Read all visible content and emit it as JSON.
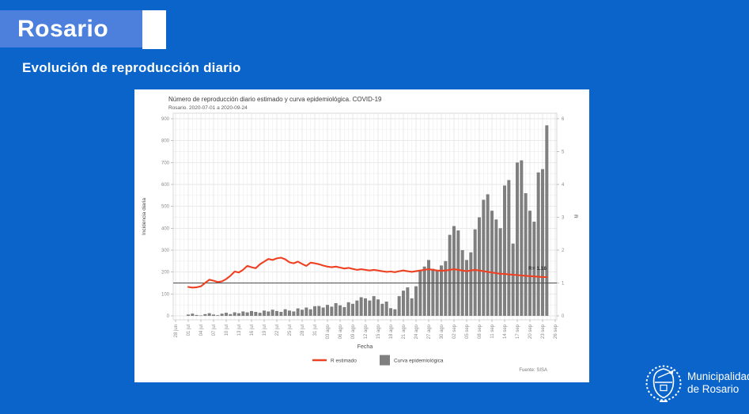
{
  "header": {
    "title": "Rosario",
    "subtitle": "Evolución de reproducción diario"
  },
  "logo": {
    "line1": "Municipalidad",
    "line2": "de Rosario"
  },
  "chart": {
    "title": "Número de reproducción diario estimado y curva epidemiológica. COVID-19",
    "subtitle": "Rosario. 2020-07-01 a 2020-09-24",
    "x_axis_label": "Fecha",
    "y_axis_label": "Incidencia diaria",
    "y2_axis_label": "R",
    "annotation": "R= 1.18",
    "caption": "Fuente: SISA",
    "legend": [
      {
        "label": "R estimado",
        "swatch": "line",
        "color": "#ee4123"
      },
      {
        "label": "Curva epidemiológica",
        "swatch": "rect",
        "color": "#7f7f7f"
      }
    ]
  },
  "chart_data": {
    "type": "bar+line",
    "title": "Número de reproducción diario estimado y curva epidemiológica. COVID-19",
    "xlabel": "Fecha",
    "ylabel": "Incidencia diaria",
    "y2label": "R",
    "ylim": [
      0,
      900
    ],
    "y2lim": [
      0,
      6
    ],
    "y_ticks": [
      0,
      100,
      200,
      300,
      400,
      500,
      600,
      700,
      800,
      900
    ],
    "y2_ticks": [
      0,
      1,
      2,
      3,
      4,
      5,
      6
    ],
    "x_tick_labels": [
      "28 jun",
      "01 jul",
      "04 jul",
      "07 jul",
      "10 jul",
      "13 jul",
      "16 jul",
      "19 jul",
      "22 jul",
      "25 jul",
      "28 jul",
      "31 jul",
      "03 ago",
      "06 ago",
      "09 ago",
      "12 ago",
      "15 ago",
      "18 ago",
      "21 ago",
      "24 ago",
      "27 ago",
      "30 ago",
      "02 sep",
      "05 sep",
      "08 sep",
      "11 sep",
      "14 sep",
      "17 sep",
      "20 sep",
      "23 sep",
      "26 sep"
    ],
    "reference_line_y2": 1,
    "grid": true,
    "legend_position": "bottom",
    "x": [
      "01 jul",
      "02 jul",
      "03 jul",
      "04 jul",
      "05 jul",
      "06 jul",
      "07 jul",
      "08 jul",
      "09 jul",
      "10 jul",
      "11 jul",
      "12 jul",
      "13 jul",
      "14 jul",
      "15 jul",
      "16 jul",
      "17 jul",
      "18 jul",
      "19 jul",
      "20 jul",
      "21 jul",
      "22 jul",
      "23 jul",
      "24 jul",
      "25 jul",
      "26 jul",
      "27 jul",
      "28 jul",
      "29 jul",
      "30 jul",
      "31 jul",
      "01 ago",
      "02 ago",
      "03 ago",
      "04 ago",
      "05 ago",
      "06 ago",
      "07 ago",
      "08 ago",
      "09 ago",
      "10 ago",
      "11 ago",
      "12 ago",
      "13 ago",
      "14 ago",
      "15 ago",
      "16 ago",
      "17 ago",
      "18 ago",
      "19 ago",
      "20 ago",
      "21 ago",
      "22 ago",
      "23 ago",
      "24 ago",
      "25 ago",
      "26 ago",
      "27 ago",
      "28 ago",
      "29 ago",
      "30 ago",
      "31 ago",
      "01 sep",
      "02 sep",
      "03 sep",
      "04 sep",
      "05 sep",
      "06 sep",
      "07 sep",
      "08 sep",
      "09 sep",
      "10 sep",
      "11 sep",
      "12 sep",
      "13 sep",
      "14 sep",
      "15 sep",
      "16 sep",
      "17 sep",
      "18 sep",
      "19 sep",
      "20 sep",
      "21 sep",
      "22 sep",
      "23 sep",
      "24 sep"
    ],
    "series": [
      {
        "name": "Curva epidemiológica",
        "type": "bar",
        "axis": "left",
        "color": "#7f7f7f",
        "values": [
          6,
          10,
          4,
          2,
          8,
          12,
          6,
          3,
          10,
          14,
          8,
          16,
          12,
          20,
          16,
          22,
          18,
          14,
          24,
          20,
          28,
          22,
          18,
          30,
          24,
          20,
          34,
          28,
          38,
          30,
          44,
          45,
          38,
          50,
          42,
          58,
          48,
          40,
          62,
          55,
          70,
          85,
          80,
          70,
          90,
          75,
          55,
          65,
          35,
          30,
          90,
          115,
          130,
          80,
          135,
          205,
          225,
          255,
          215,
          205,
          230,
          250,
          370,
          410,
          390,
          300,
          255,
          290,
          395,
          450,
          530,
          555,
          480,
          440,
          400,
          595,
          620,
          330,
          700,
          710,
          560,
          480,
          430,
          655,
          670,
          870
        ]
      },
      {
        "name": "R estimado",
        "type": "line",
        "axis": "right",
        "color": "#ee4123",
        "values": [
          0.88,
          0.86,
          0.87,
          0.9,
          1.0,
          1.1,
          1.07,
          1.03,
          1.05,
          1.12,
          1.22,
          1.35,
          1.32,
          1.4,
          1.52,
          1.48,
          1.45,
          1.57,
          1.65,
          1.73,
          1.7,
          1.75,
          1.77,
          1.72,
          1.63,
          1.6,
          1.65,
          1.58,
          1.52,
          1.62,
          1.6,
          1.57,
          1.53,
          1.5,
          1.48,
          1.5,
          1.47,
          1.44,
          1.46,
          1.43,
          1.4,
          1.42,
          1.4,
          1.38,
          1.4,
          1.38,
          1.36,
          1.34,
          1.35,
          1.33,
          1.36,
          1.38,
          1.36,
          1.34,
          1.36,
          1.38,
          1.4,
          1.42,
          1.4,
          1.38,
          1.37,
          1.38,
          1.4,
          1.42,
          1.4,
          1.38,
          1.36,
          1.38,
          1.4,
          1.38,
          1.36,
          1.34,
          1.32,
          1.3,
          1.28,
          1.28,
          1.26,
          1.25,
          1.24,
          1.23,
          1.22,
          1.21,
          1.2,
          1.19,
          1.18,
          1.18
        ]
      }
    ]
  },
  "colors": {
    "slide_background": "#0a64c9",
    "band": "#4c80dc",
    "bars": "#7f7f7f",
    "r_line": "#ee4123",
    "reference_line": "#4d4d4d"
  }
}
